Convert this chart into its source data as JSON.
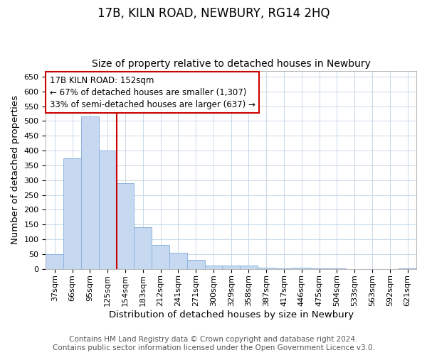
{
  "title": "17B, KILN ROAD, NEWBURY, RG14 2HQ",
  "subtitle": "Size of property relative to detached houses in Newbury",
  "xlabel": "Distribution of detached houses by size in Newbury",
  "ylabel": "Number of detached properties",
  "categories": [
    "37sqm",
    "66sqm",
    "95sqm",
    "125sqm",
    "154sqm",
    "183sqm",
    "212sqm",
    "241sqm",
    "271sqm",
    "300sqm",
    "329sqm",
    "358sqm",
    "387sqm",
    "417sqm",
    "446sqm",
    "475sqm",
    "504sqm",
    "533sqm",
    "563sqm",
    "592sqm",
    "621sqm"
  ],
  "values": [
    50,
    375,
    515,
    400,
    290,
    142,
    80,
    55,
    30,
    12,
    11,
    12,
    4,
    2,
    5,
    1,
    1,
    0,
    0,
    0,
    2
  ],
  "bar_color": "#c6d9f0",
  "bar_edge_color": "#8db4e2",
  "vline_index": 3.5,
  "vline_color": "#cc0000",
  "annotation_title": "17B KILN ROAD: 152sqm",
  "annotation_line1": "← 67% of detached houses are smaller (1,307)",
  "annotation_line2": "33% of semi-detached houses are larger (637) →",
  "annotation_box_color": "#ffffff",
  "annotation_box_edge_color": "#cc0000",
  "ylim": [
    0,
    670
  ],
  "yticks": [
    0,
    50,
    100,
    150,
    200,
    250,
    300,
    350,
    400,
    450,
    500,
    550,
    600,
    650
  ],
  "footer1": "Contains HM Land Registry data © Crown copyright and database right 2024.",
  "footer2": "Contains public sector information licensed under the Open Government Licence v3.0.",
  "bg_color": "#ffffff",
  "grid_color": "#c8d8e8",
  "title_fontsize": 12,
  "subtitle_fontsize": 10,
  "axis_label_fontsize": 9.5,
  "tick_fontsize": 8,
  "annotation_fontsize": 8.5,
  "footer_fontsize": 7.5
}
